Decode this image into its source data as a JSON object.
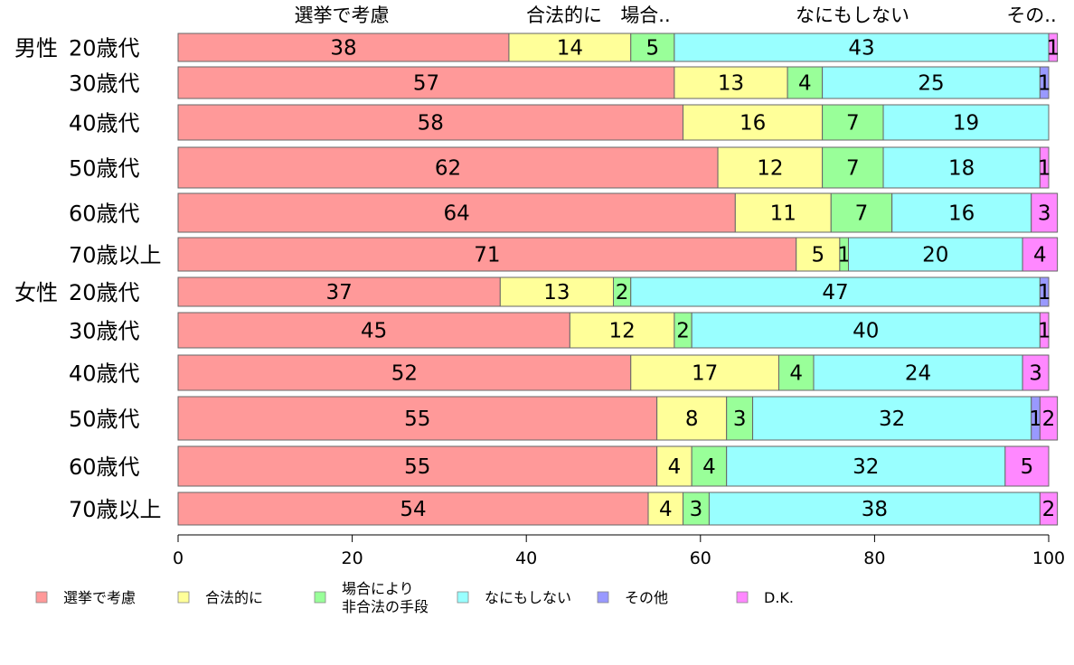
{
  "chart_data": {
    "type": "bar",
    "orientation": "horizontal",
    "stacked": true,
    "xlim": [
      0,
      100
    ],
    "xticks": [
      0,
      20,
      40,
      60,
      80,
      100
    ],
    "grid": false,
    "legend_position": "bottom",
    "column_headers": [
      "選挙で考慮",
      "合法的に",
      "場合..",
      "なにもしない",
      "その.."
    ],
    "groups": [
      {
        "name": "男性",
        "rows": [
          0,
          1,
          2,
          3,
          4,
          5
        ]
      },
      {
        "name": "女性",
        "rows": [
          6,
          7,
          8,
          9,
          10,
          11
        ]
      }
    ],
    "categories": [
      "20歳代",
      "30歳代",
      "40歳代",
      "50歳代",
      "60歳代",
      "70歳以上",
      "20歳代",
      "30歳代",
      "40歳代",
      "50歳代",
      "60歳代",
      "70歳以上"
    ],
    "series": [
      {
        "name": "選挙で考慮",
        "color": "#ff9999",
        "values": [
          38,
          57,
          58,
          62,
          64,
          71,
          37,
          45,
          52,
          55,
          55,
          54
        ]
      },
      {
        "name": "合法的に",
        "color": "#ffff99",
        "values": [
          14,
          13,
          16,
          12,
          11,
          5,
          13,
          12,
          17,
          8,
          4,
          4
        ]
      },
      {
        "name": "場合により\n非合法の手段",
        "color": "#99ff99",
        "values": [
          5,
          4,
          7,
          7,
          7,
          1,
          2,
          2,
          4,
          3,
          4,
          3
        ]
      },
      {
        "name": "なにもしない",
        "color": "#99ffff",
        "values": [
          43,
          25,
          19,
          18,
          16,
          20,
          47,
          40,
          24,
          32,
          32,
          38
        ]
      },
      {
        "name": "その他",
        "color": "#9999ff",
        "values": [
          0,
          1,
          0,
          0,
          0,
          0,
          1,
          0,
          0,
          1,
          0,
          0
        ]
      },
      {
        "name": "D.K.",
        "color": "#ff88ff",
        "values": [
          1,
          0,
          0,
          1,
          3,
          4,
          0,
          1,
          3,
          2,
          5,
          2
        ]
      }
    ]
  }
}
